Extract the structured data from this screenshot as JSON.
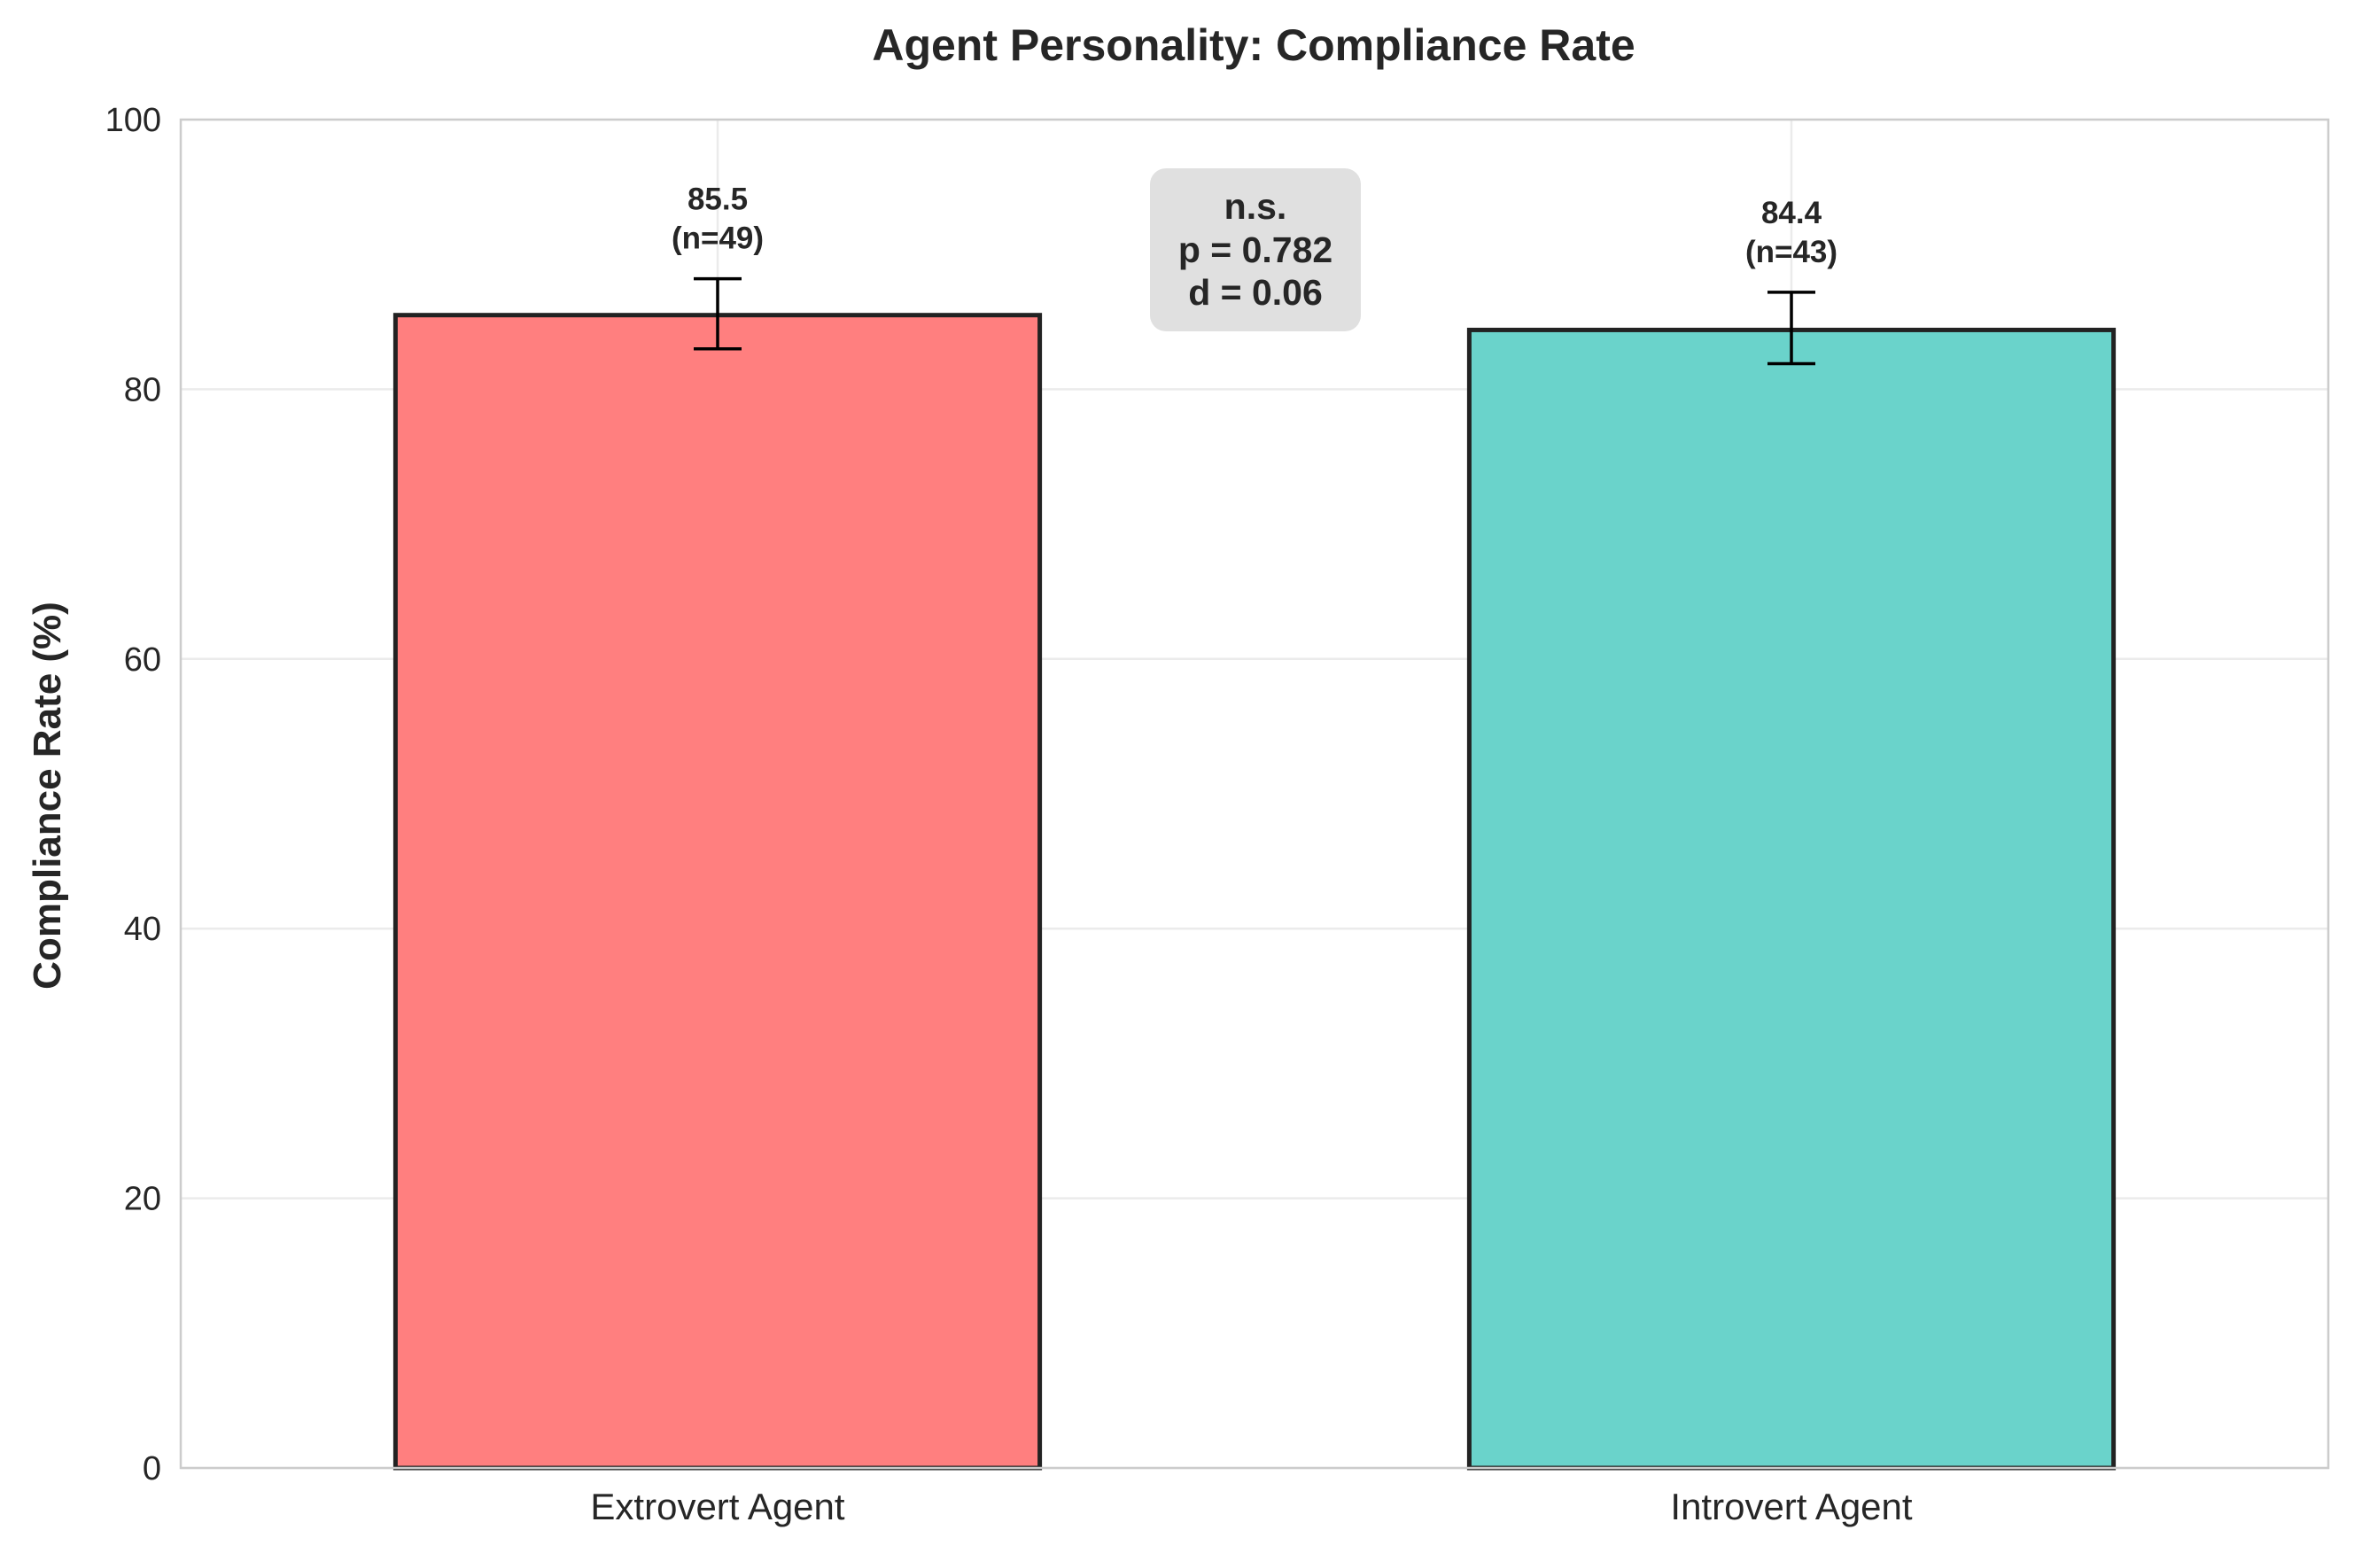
{
  "chart_data": {
    "type": "bar",
    "title": "Agent Personality: Compliance Rate",
    "xlabel": "",
    "ylabel": "Compliance Rate (%)",
    "ylim": [
      0,
      100
    ],
    "yticks": [
      "0",
      "20",
      "40",
      "60",
      "80",
      "100"
    ],
    "grid": true,
    "categories": [
      "Extrovert Agent",
      "Introvert Agent"
    ],
    "values": [
      85.5,
      84.4
    ],
    "error_bars": [
      [
        83.0,
        88.2
      ],
      [
        81.9,
        87.2
      ]
    ],
    "data_labels": [
      {
        "value": "85.5",
        "n": "(n=49)"
      },
      {
        "value": "84.4",
        "n": "(n=43)"
      }
    ],
    "colors": [
      "#FF7F7F",
      "#6AD3CB"
    ],
    "annotation": {
      "line1": "n.s.",
      "line2": "p = 0.782",
      "line3": "d = 0.06"
    }
  }
}
